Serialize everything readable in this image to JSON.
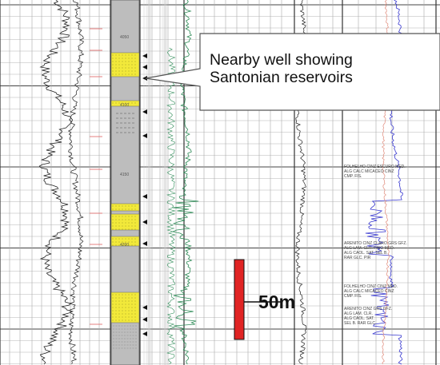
{
  "callout": {
    "line1": "Nearby well showing",
    "line2": "Santonian reservoirs"
  },
  "scale_bar": {
    "label": "50m",
    "color": "#e02424"
  },
  "lithology": {
    "sand_color": "#f2e93a",
    "shale_color": "#bdbdbd"
  },
  "curves": {
    "gamma_ray_color": "#222222",
    "porosity_color": "#2e8b57",
    "resistivity_color": "#3a3ad0",
    "density_color": "#e08a7a"
  },
  "depth_labels": [
    "4050",
    "4100",
    "4150",
    "4200"
  ],
  "annotations": [
    {
      "lines": [
        "FOLHELHO CINZ ESCURO MED.",
        "ALG CALC MICACEO CINZ",
        "CMP. FIS."
      ]
    },
    {
      "lines": [
        "ARENITO CINZ CLARO GRS GFZ.",
        "ALG LAM. CLR. FINO MED.",
        "ALG CAOL. SAT. SEL B.",
        "RAR GLC. PIR"
      ]
    },
    {
      "lines": [
        "FOLHELHO CINZ CINZ MED.",
        "ALG CALC MICACEO CINZ",
        "CMP. FIS."
      ]
    },
    {
      "lines": [
        "ARENITO CINZ GRS GFZ.",
        "ALG LAM. CLR.",
        "ALG CAOL. SAT.",
        "SEL B. RAR GLC."
      ]
    }
  ]
}
